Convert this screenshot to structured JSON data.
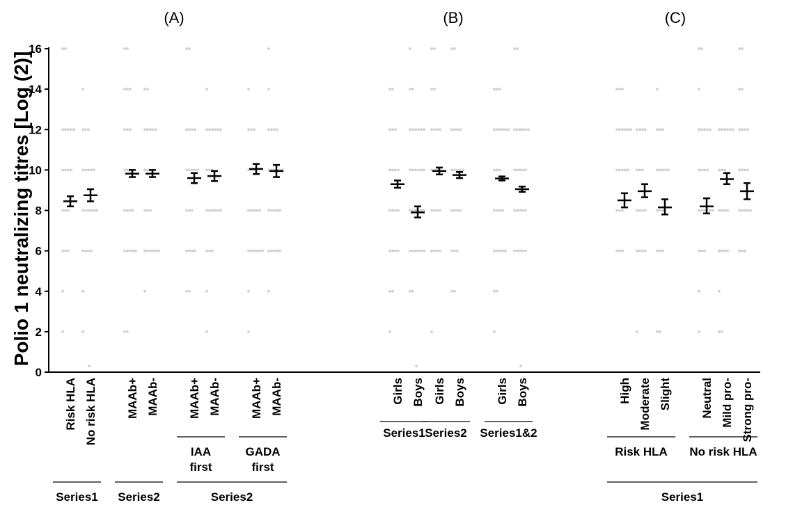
{
  "chart_data": {
    "type": "scatter",
    "ylabel": "Polio 1 neutralizing titres [Log (2)]",
    "ylim": [
      0,
      16
    ],
    "yticks": [
      0,
      2,
      4,
      6,
      8,
      10,
      12,
      14,
      16
    ],
    "panels": [
      "(A)",
      "(B)",
      "(C)"
    ],
    "categories": [
      {
        "label": "Risk HLA",
        "mean": 8.45,
        "lo": 8.2,
        "hi": 8.7
      },
      {
        "label": "No risk HLA",
        "mean": 8.75,
        "lo": 8.45,
        "hi": 9.05
      },
      {
        "label": "MAAb+",
        "mean": 9.82,
        "lo": 9.65,
        "hi": 10.0
      },
      {
        "label": "MAAb-",
        "mean": 9.82,
        "lo": 9.65,
        "hi": 10.0
      },
      {
        "label": "MAAb+",
        "mean": 9.6,
        "lo": 9.35,
        "hi": 9.85
      },
      {
        "label": "MAAb-",
        "mean": 9.7,
        "lo": 9.45,
        "hi": 9.95
      },
      {
        "label": "MAAb+",
        "mean": 10.05,
        "lo": 9.8,
        "hi": 10.3
      },
      {
        "label": "MAAb-",
        "mean": 9.95,
        "lo": 9.65,
        "hi": 10.25
      },
      {
        "label": "Girls",
        "mean": 9.3,
        "lo": 9.12,
        "hi": 9.48
      },
      {
        "label": "Boys",
        "mean": 7.9,
        "lo": 7.65,
        "hi": 8.2
      },
      {
        "label": "Girls",
        "mean": 9.95,
        "lo": 9.78,
        "hi": 10.12
      },
      {
        "label": "Boys",
        "mean": 9.75,
        "lo": 9.6,
        "hi": 9.9
      },
      {
        "label": "Girls",
        "mean": 9.58,
        "lo": 9.48,
        "hi": 9.68
      },
      {
        "label": "Boys",
        "mean": 9.05,
        "lo": 8.92,
        "hi": 9.18
      },
      {
        "label": "High",
        "mean": 8.5,
        "lo": 8.15,
        "hi": 8.85
      },
      {
        "label": "Moderate",
        "mean": 8.95,
        "lo": 8.65,
        "hi": 9.3
      },
      {
        "label": "Slight",
        "mean": 8.15,
        "lo": 7.8,
        "hi": 8.55
      },
      {
        "label": "Neutral",
        "mean": 8.2,
        "lo": 7.85,
        "hi": 8.6
      },
      {
        "label": "Mild pro-",
        "mean": 9.55,
        "lo": 9.3,
        "hi": 9.85
      },
      {
        "label": "Strong pro-",
        "mean": 8.95,
        "lo": 8.55,
        "hi": 9.35
      }
    ],
    "groups": [
      {
        "label": "Series1",
        "from": 0,
        "to": 1,
        "level": 2
      },
      {
        "label": "Series2",
        "from": 2,
        "to": 3,
        "level": 2
      },
      {
        "label": "IAA first",
        "from": 4,
        "to": 5,
        "level": 1
      },
      {
        "label": "GADA first",
        "from": 6,
        "to": 7,
        "level": 1
      },
      {
        "label": "Series2",
        "from": 4,
        "to": 7,
        "level": 2
      },
      {
        "label": "Series1",
        "from": 8,
        "to": 9,
        "level": 0
      },
      {
        "label": "Series2",
        "from": 10,
        "to": 11,
        "level": 0
      },
      {
        "label": "Series1&2",
        "from": 12,
        "to": 13,
        "level": 0
      },
      {
        "label": "Risk HLA",
        "from": 14,
        "to": 16,
        "level": 1
      },
      {
        "label": "No risk HLA",
        "from": 17,
        "to": 19,
        "level": 1
      },
      {
        "label": "Series1",
        "from": 14,
        "to": 19,
        "level": 2
      }
    ],
    "grid": false,
    "legend": "none"
  }
}
